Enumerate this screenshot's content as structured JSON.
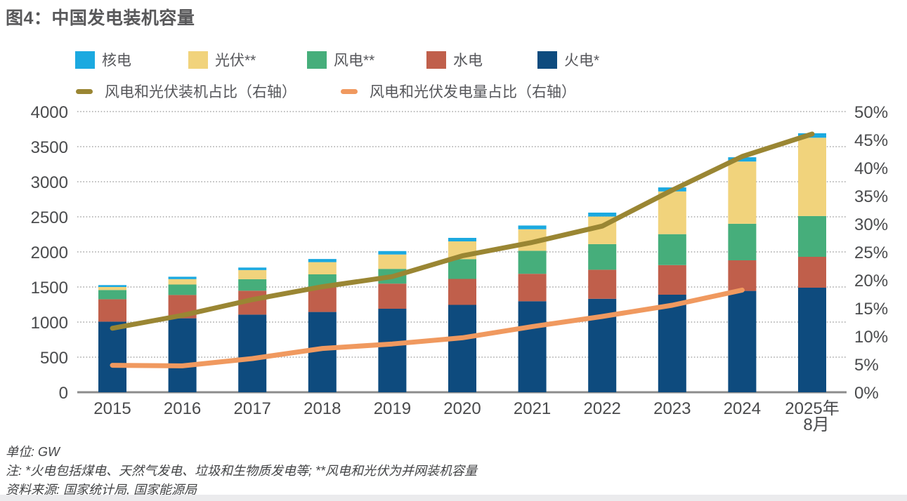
{
  "title": "图4：中国发电装机容量",
  "legend": {
    "bars": [
      {
        "label": "核电",
        "color": "#1BA9E0"
      },
      {
        "label": "光伏**",
        "color": "#F1D37C"
      },
      {
        "label": "风电**",
        "color": "#46AE7B"
      },
      {
        "label": "水电",
        "color": "#C05F4B"
      },
      {
        "label": "火电*",
        "color": "#0E4B7E"
      }
    ],
    "lines": [
      {
        "label": "风电和光伏装机占比（右轴）",
        "color": "#9A8633"
      },
      {
        "label": "风电和光伏发电量占比（右轴）",
        "color": "#F0995F"
      }
    ]
  },
  "chart_data": {
    "type": "bar",
    "subtype": "stacked-bar-with-lines",
    "unit": "GW",
    "title": "图4：中国发电装机容量",
    "categories": [
      "2015",
      "2016",
      "2017",
      "2018",
      "2019",
      "2020",
      "2021",
      "2022",
      "2023",
      "2024",
      "2025年\n8月"
    ],
    "series": [
      {
        "name": "火电*",
        "color": "#0E4B7E",
        "values": [
          1006,
          1054,
          1106,
          1144,
          1190,
          1245,
          1297,
          1332,
          1390,
          1444,
          1490
        ]
      },
      {
        "name": "水电",
        "color": "#C05F4B",
        "values": [
          320,
          332,
          341,
          352,
          358,
          370,
          391,
          414,
          422,
          436,
          440
        ]
      },
      {
        "name": "风电**",
        "color": "#46AE7B",
        "values": [
          131,
          149,
          164,
          184,
          210,
          282,
          328,
          365,
          441,
          521,
          581
        ]
      },
      {
        "name": "光伏**",
        "color": "#F1D37C",
        "values": [
          43,
          77,
          130,
          174,
          205,
          253,
          307,
          393,
          609,
          887,
          1116
        ]
      },
      {
        "name": "核电",
        "color": "#1BA9E0",
        "values": [
          27,
          34,
          36,
          45,
          49,
          50,
          53,
          56,
          57,
          61,
          64
        ]
      }
    ],
    "lines": [
      {
        "name": "风电和光伏装机占比（右轴）",
        "color": "#9A8633",
        "axis": "right",
        "values": [
          11.4,
          13.7,
          16.5,
          18.8,
          20.6,
          24.3,
          26.7,
          29.6,
          36,
          42,
          46
        ]
      },
      {
        "name": "风电和光伏发电量占比（右轴）",
        "color": "#F0995F",
        "axis": "right",
        "values": [
          4.8,
          4.7,
          6,
          7.8,
          8.6,
          9.7,
          11.7,
          13.5,
          15.5,
          18.2,
          null
        ]
      }
    ],
    "left_axis": {
      "min": 0,
      "max": 4000,
      "step": 500,
      "ticks": [
        "0",
        "500",
        "1000",
        "1500",
        "2000",
        "2500",
        "3000",
        "3500",
        "4000"
      ]
    },
    "right_axis": {
      "min": 0,
      "max": 50,
      "step": 5,
      "ticks": [
        "0%",
        "5%",
        "10%",
        "15%",
        "20%",
        "25%",
        "30%",
        "35%",
        "40%",
        "45%",
        "50%"
      ]
    },
    "grid": "horizontal-dotted",
    "legend_position": "top"
  },
  "notes": {
    "unit": "单位: GW",
    "note": "注: *火电包括煤电、天然气发电、垃圾和生物质发电等; **风电和光伏为并网装机容量",
    "source": "资料来源: 国家统计局, 国家能源局"
  }
}
